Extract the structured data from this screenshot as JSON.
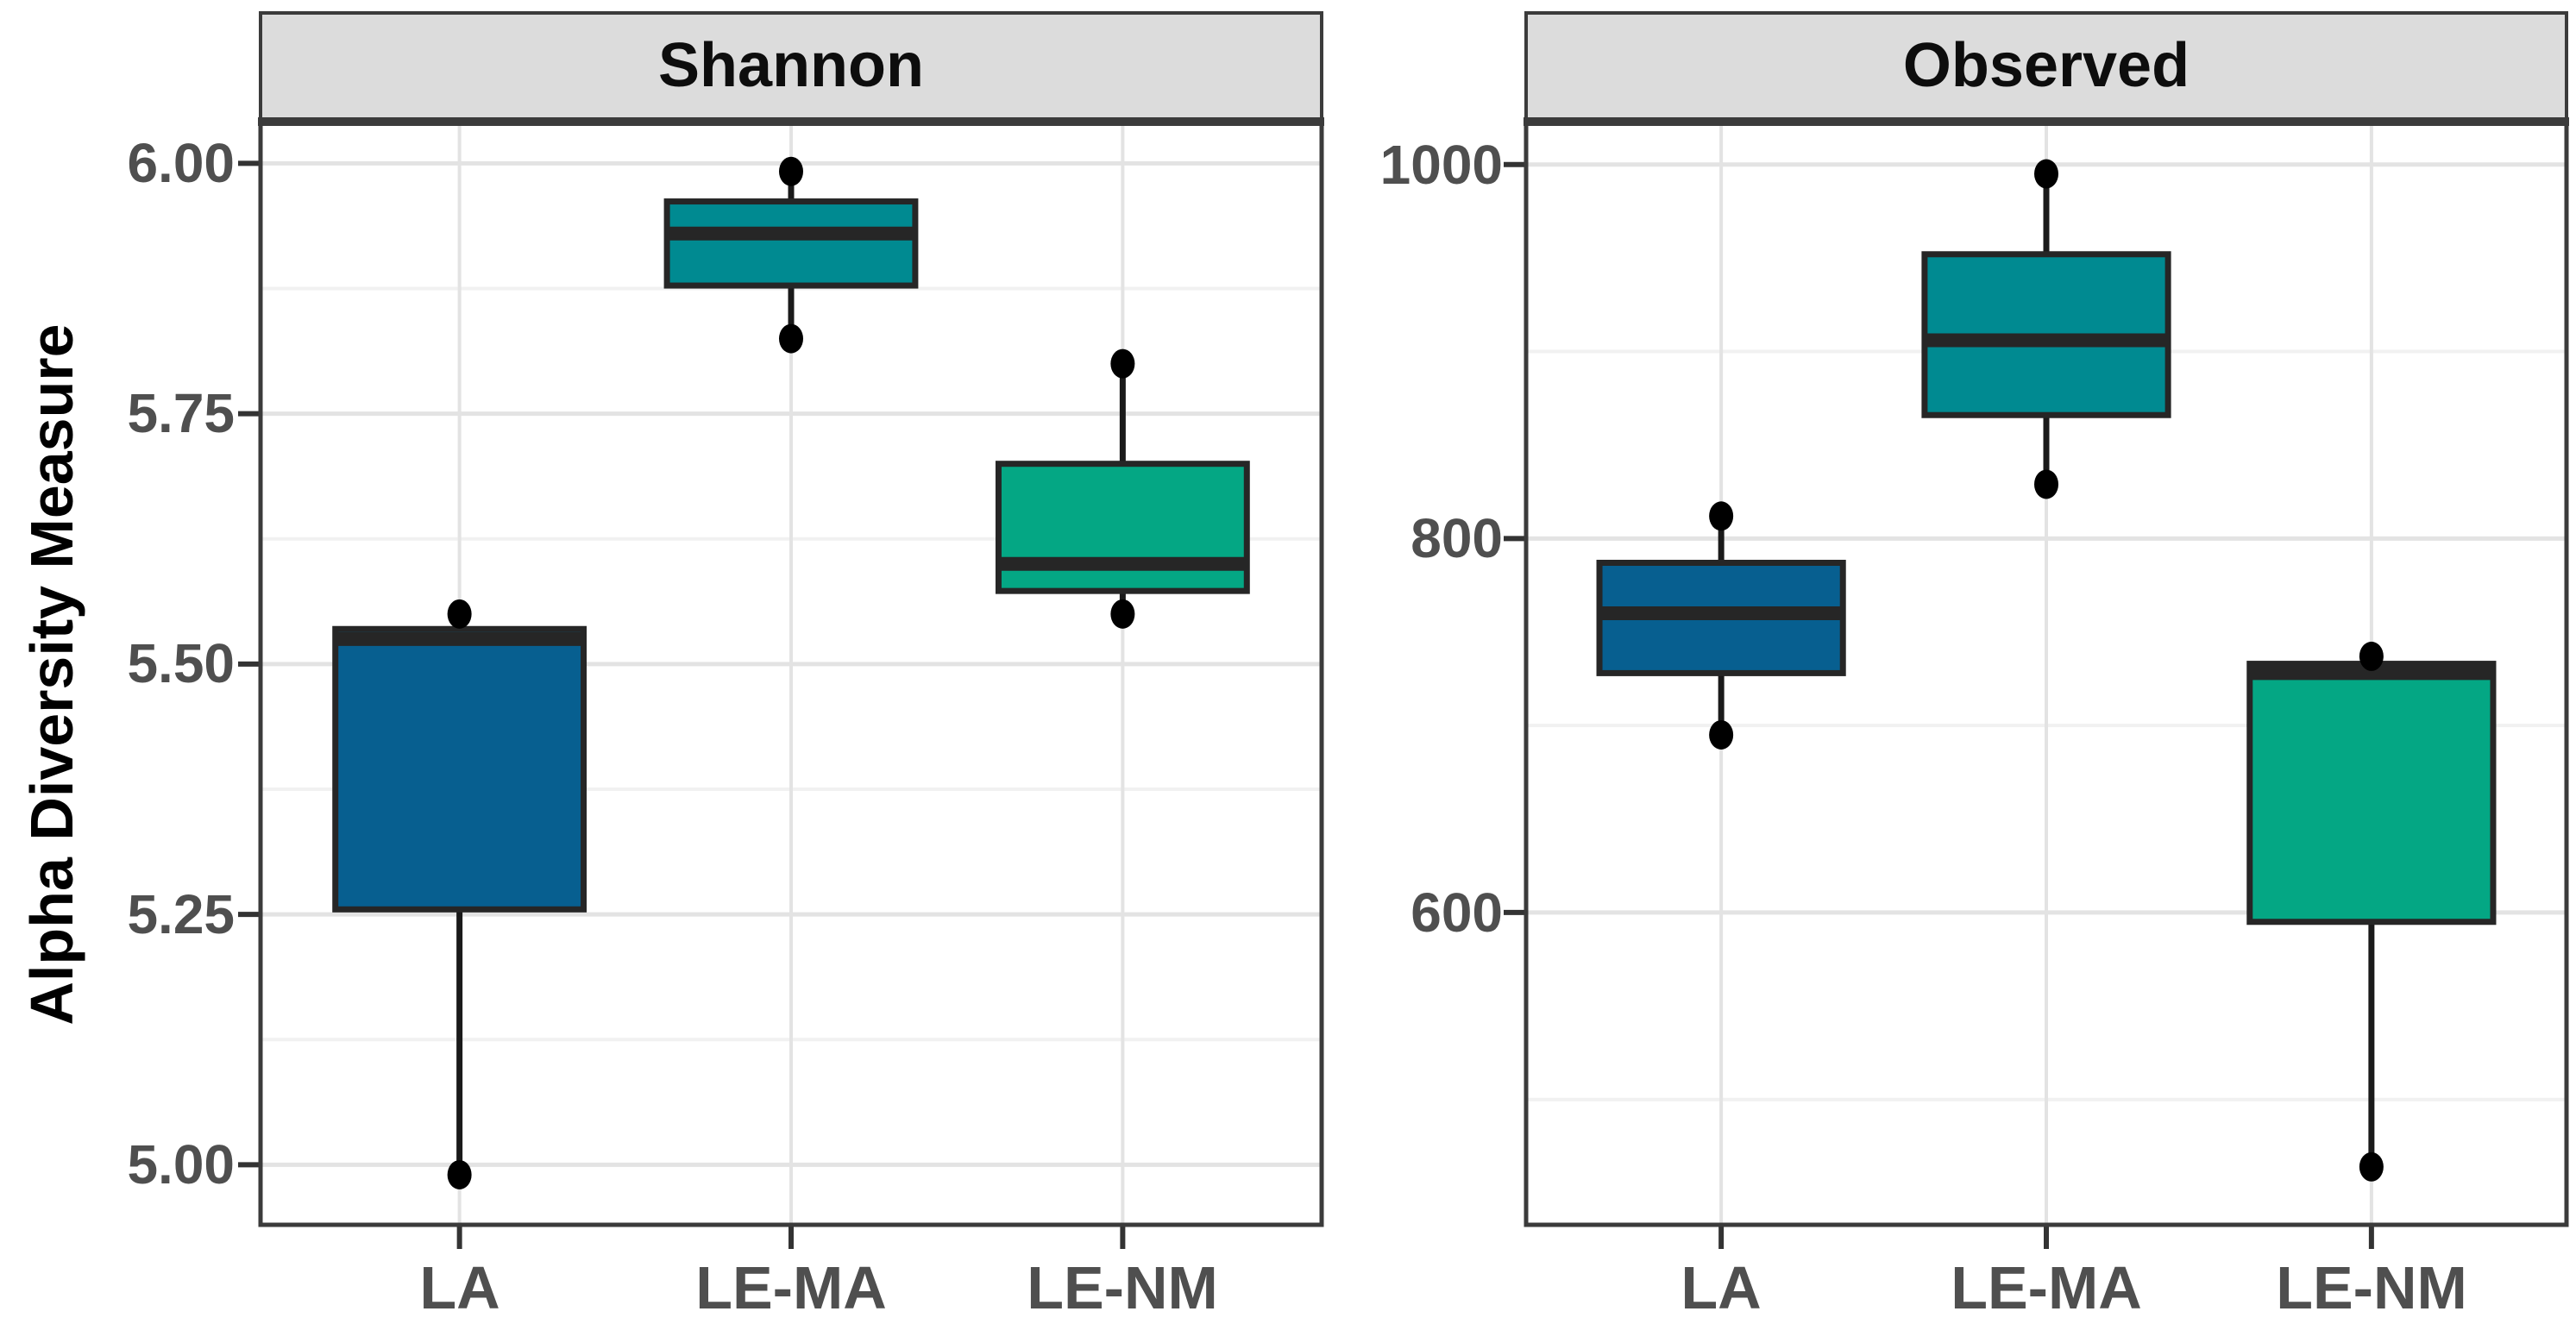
{
  "figure": {
    "y_axis_title": "Alpha Diversity Measure"
  },
  "colors": {
    "group_la": "#075f90",
    "group_le_ma": "#008a91",
    "group_le_nm": "#04a784",
    "box_border": "#262626",
    "whisker": "#1a1a1a",
    "point": "#000000",
    "strip_bg": "#dcdcdc",
    "frame": "#3b3b3b",
    "grid_major": "#e3e3e3",
    "grid_minor": "#f1f1f1",
    "tick_mark": "#333333",
    "axis_text": "#4f4f4f",
    "strip_text": "#0d0d0d"
  },
  "chart_data": [
    {
      "type": "box",
      "title": "Shannon",
      "categories": [
        "LA",
        "LE-MA",
        "LE-NM"
      ],
      "ylim": [
        4.94,
        6.04
      ],
      "yticks": [
        {
          "value": 6.0,
          "label": "6.00"
        },
        {
          "value": 5.75,
          "label": "5.75"
        },
        {
          "value": 5.5,
          "label": "5.50"
        },
        {
          "value": 5.25,
          "label": "5.25"
        },
        {
          "value": 5.0,
          "label": "5.00"
        }
      ],
      "yminor": [
        5.875,
        5.625,
        5.375,
        5.125
      ],
      "grid": true,
      "legend": "none",
      "series": [
        {
          "category": "LA",
          "color_key": "group_la",
          "q1": 5.255,
          "median": 5.525,
          "q3": 5.535,
          "whisker_low": 4.99,
          "whisker_high": 5.55,
          "points": [
            5.55,
            4.99
          ]
        },
        {
          "category": "LE-MA",
          "color_key": "group_le_ma",
          "q1": 5.878,
          "median": 5.93,
          "q3": 5.962,
          "whisker_low": 5.825,
          "whisker_high": 5.992,
          "points": [
            5.992,
            5.825
          ]
        },
        {
          "category": "LE-NM",
          "color_key": "group_le_nm",
          "q1": 5.573,
          "median": 5.6,
          "q3": 5.7,
          "whisker_low": 5.55,
          "whisker_high": 5.8,
          "points": [
            5.8,
            5.55
          ]
        }
      ]
    },
    {
      "type": "box",
      "title": "Observed",
      "categories": [
        "LA",
        "LE-MA",
        "LE-NM"
      ],
      "ylim": [
        433,
        1022
      ],
      "yticks": [
        {
          "value": 1000,
          "label": "1000"
        },
        {
          "value": 800,
          "label": "800"
        },
        {
          "value": 600,
          "label": "600"
        }
      ],
      "yminor": [
        900,
        700,
        500
      ],
      "grid": true,
      "legend": "none",
      "series": [
        {
          "category": "LA",
          "color_key": "group_la",
          "q1": 728,
          "median": 760,
          "q3": 787,
          "whisker_low": 695,
          "whisker_high": 812,
          "points": [
            812,
            695
          ]
        },
        {
          "category": "LE-MA",
          "color_key": "group_le_ma",
          "q1": 866,
          "median": 906,
          "q3": 952,
          "whisker_low": 829,
          "whisker_high": 995,
          "points": [
            995,
            829
          ]
        },
        {
          "category": "LE-NM",
          "color_key": "group_le_nm",
          "q1": 595,
          "median": 728,
          "q3": 733,
          "whisker_low": 464,
          "whisker_high": 737,
          "points": [
            737,
            464
          ]
        }
      ]
    }
  ]
}
